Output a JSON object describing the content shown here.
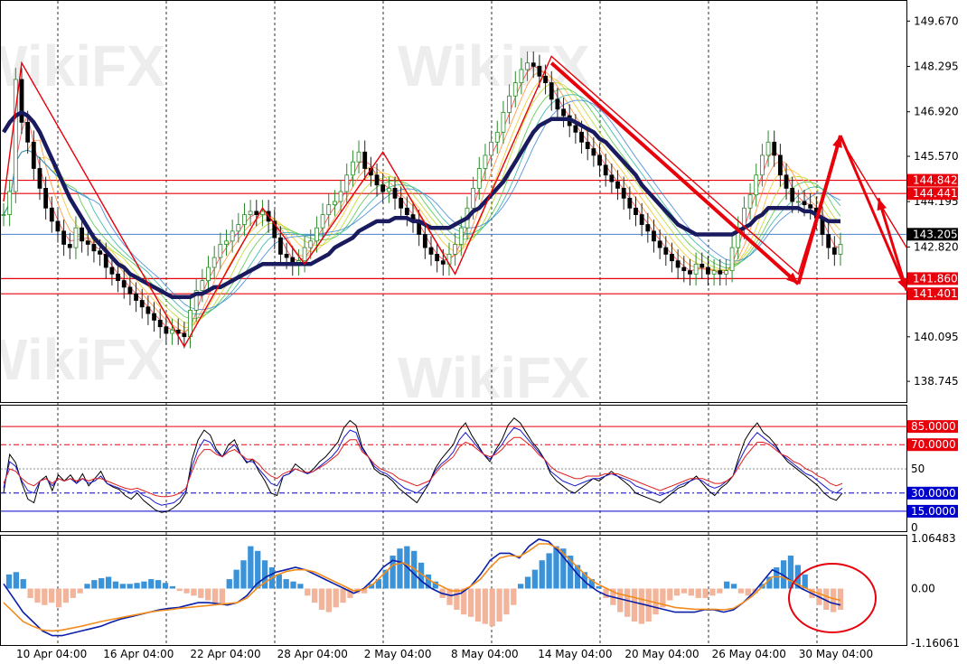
{
  "watermark": "WikiFX",
  "colors": {
    "frame": "#000000",
    "ma_thick": "#1a1a5e",
    "level_red": "#e8000b",
    "current_price_line": "#4a7fc4",
    "current_price_badge": "#000000",
    "level_blue": "#0000cc",
    "hist_positive": "#3a92d8",
    "hist_negative": "#f2b49a",
    "macd_line": "#0a1fa8",
    "signal_line": "#f28c1c",
    "stoch_fast": "#000000",
    "stoch_mid": "#1a1acc",
    "stoch_slow": "#e02020",
    "arrow": "#e8000b"
  },
  "chart_data": [
    {
      "type": "line",
      "panel": "price",
      "y_ticks": [
        "149.670",
        "148.295",
        "146.920",
        "145.570",
        "144.195",
        "142.820",
        "140.095",
        "138.745"
      ],
      "horizontal_levels": [
        {
          "label": "144.842",
          "value": 144.842,
          "style": "red"
        },
        {
          "label": "144.441",
          "value": 144.441,
          "style": "red"
        },
        {
          "label": "143.205",
          "value": 143.205,
          "style": "current"
        },
        {
          "label": "141.860",
          "value": 141.86,
          "style": "red"
        },
        {
          "label": "141.401",
          "value": 141.401,
          "style": "red"
        }
      ],
      "x_ticks": [
        "10 Apr 04:00",
        "16 Apr 04:00",
        "22 Apr 04:00",
        "28 Apr 04:00",
        "2 May 04:00",
        "8 May 04:00",
        "14 May 04:00",
        "20 May 04:00",
        "26 May 04:00",
        "30 May 04:00"
      ],
      "zigzag": [
        {
          "x": 0,
          "y": 144.2
        },
        {
          "x": 3,
          "y": 148.4
        },
        {
          "x": 30,
          "y": 139.8
        },
        {
          "x": 43,
          "y": 144.0
        },
        {
          "x": 50,
          "y": 142.3
        },
        {
          "x": 63,
          "y": 145.7
        },
        {
          "x": 75,
          "y": 142.0
        },
        {
          "x": 91,
          "y": 148.6
        },
        {
          "x": 132,
          "y": 142.0
        },
        {
          "x": 139,
          "y": 146.1
        },
        {
          "x": 150,
          "y": 142.8
        }
      ],
      "closes": [
        143.8,
        144.5,
        147.9,
        146.6,
        146.0,
        145.2,
        144.6,
        144.0,
        143.6,
        143.3,
        142.9,
        142.8,
        143.4,
        143.0,
        142.9,
        142.7,
        142.6,
        142.2,
        142.0,
        141.8,
        141.6,
        141.4,
        141.2,
        141.0,
        140.8,
        140.6,
        140.4,
        140.2,
        140.3,
        140.2,
        140.1,
        140.9,
        141.5,
        141.8,
        142.2,
        142.5,
        142.9,
        143.0,
        143.3,
        143.5,
        143.8,
        143.9,
        143.8,
        143.9,
        143.6,
        143.1,
        142.6,
        142.5,
        142.3,
        142.4,
        142.8,
        143.0,
        143.4,
        143.8,
        144.1,
        144.2,
        144.5,
        145.0,
        145.4,
        145.7,
        145.2,
        145.0,
        144.7,
        144.5,
        144.6,
        144.3,
        144.0,
        143.8,
        143.6,
        143.2,
        142.8,
        142.6,
        142.4,
        142.3,
        142.6,
        142.9,
        143.4,
        144.0,
        144.6,
        145.2,
        145.6,
        146.0,
        146.3,
        146.9,
        147.4,
        147.8,
        148.2,
        148.4,
        148.3,
        148.0,
        147.8,
        147.3,
        147.0,
        146.8,
        146.5,
        146.3,
        146.0,
        145.8,
        145.6,
        145.3,
        145.0,
        144.8,
        144.6,
        144.3,
        144.0,
        143.8,
        143.5,
        143.3,
        143.0,
        142.8,
        142.6,
        142.4,
        142.2,
        142.1,
        142.0,
        142.3,
        142.2,
        142.0,
        142.1,
        142.0,
        142.1,
        142.8,
        143.4,
        144.0,
        144.4,
        145.0,
        145.6,
        146.0,
        145.6,
        145.0,
        144.6,
        144.2,
        144.2,
        144.1,
        144.0,
        143.7,
        143.2,
        142.8,
        142.6,
        142.9
      ],
      "ma_values": [
        146.3,
        146.6,
        146.8,
        146.9,
        146.8,
        146.6,
        146.3,
        145.9,
        145.5,
        145.1,
        144.7,
        144.3,
        144.0,
        143.7,
        143.4,
        143.1,
        142.9,
        142.7,
        142.5,
        142.3,
        142.2,
        142.0,
        141.9,
        141.8,
        141.7,
        141.6,
        141.5,
        141.4,
        141.3,
        141.3,
        141.3,
        141.3,
        141.4,
        141.4,
        141.5,
        141.6,
        141.6,
        141.7,
        141.8,
        141.9,
        142.0,
        142.1,
        142.2,
        142.3,
        142.3,
        142.3,
        142.3,
        142.3,
        142.3,
        142.3,
        142.3,
        142.3,
        142.4,
        142.5,
        142.6,
        142.8,
        142.9,
        143.0,
        143.1,
        143.3,
        143.4,
        143.5,
        143.6,
        143.6,
        143.6,
        143.7,
        143.7,
        143.7,
        143.6,
        143.6,
        143.5,
        143.4,
        143.4,
        143.4,
        143.4,
        143.5,
        143.6,
        143.7,
        143.9,
        144.0,
        144.2,
        144.4,
        144.6,
        144.8,
        145.1,
        145.4,
        145.7,
        146.0,
        146.3,
        146.5,
        146.6,
        146.7,
        146.7,
        146.7,
        146.7,
        146.6,
        146.5,
        146.4,
        146.3,
        146.1,
        146.0,
        145.8,
        145.6,
        145.4,
        145.2,
        145.0,
        144.7,
        144.5,
        144.3,
        144.1,
        143.9,
        143.7,
        143.5,
        143.4,
        143.3,
        143.2,
        143.2,
        143.2,
        143.2,
        143.2,
        143.2,
        143.2,
        143.3,
        143.4,
        143.5,
        143.7,
        143.8,
        144.0,
        144.0,
        144.0,
        144.0,
        144.0,
        144.0,
        143.9,
        143.9,
        143.8,
        143.7,
        143.6,
        143.6,
        143.6
      ],
      "price_min": 138.2,
      "price_max": 150.2
    },
    {
      "type": "line",
      "panel": "oscillator",
      "y_ticks": [
        "85.0000",
        "70.0000",
        "50",
        "30.0000",
        "15.0000",
        "0"
      ],
      "levels": [
        {
          "label": "85.0000",
          "value": 85,
          "style": "red-solid"
        },
        {
          "label": "70.0000",
          "value": 70,
          "style": "red-dashdot"
        },
        {
          "label": "50",
          "value": 50,
          "style": "gray-dotted"
        },
        {
          "label": "30.0000",
          "value": 30,
          "style": "blue-dashdot"
        },
        {
          "label": "15.0000",
          "value": 15,
          "style": "blue-solid"
        }
      ],
      "series": [
        {
          "values": [
            30,
            62,
            55,
            38,
            25,
            22,
            40,
            44,
            32,
            45,
            40,
            45,
            38,
            46,
            36,
            42,
            48,
            38,
            35,
            33,
            28,
            25,
            30,
            24,
            20,
            16,
            14,
            15,
            18,
            22,
            30,
            58,
            74,
            82,
            78,
            66,
            60,
            70,
            74,
            62,
            55,
            58,
            48,
            40,
            30,
            28,
            44,
            46,
            54,
            50,
            46,
            50,
            56,
            60,
            66,
            72,
            84,
            90,
            86,
            68,
            60,
            50,
            46,
            44,
            40,
            34,
            30,
            26,
            22,
            30,
            38,
            50,
            58,
            64,
            70,
            82,
            88,
            78,
            70,
            62,
            56,
            66,
            74,
            86,
            92,
            88,
            80,
            72,
            66,
            58,
            46,
            40,
            36,
            32,
            30,
            34,
            38,
            42,
            40,
            44,
            48,
            44,
            40,
            36,
            30,
            28,
            26,
            24,
            22,
            26,
            30,
            34,
            36,
            40,
            44,
            38,
            32,
            28,
            34,
            38,
            44,
            60,
            74,
            82,
            88,
            80,
            76,
            70,
            62,
            56,
            52,
            48,
            44,
            40,
            36,
            30,
            26,
            24,
            30
          ]
        },
        {
          "values": [
            34,
            56,
            52,
            40,
            32,
            30,
            40,
            42,
            36,
            42,
            40,
            42,
            38,
            42,
            38,
            40,
            44,
            38,
            36,
            34,
            32,
            30,
            32,
            28,
            26,
            22,
            20,
            21,
            22,
            26,
            32,
            52,
            66,
            74,
            72,
            64,
            60,
            66,
            70,
            62,
            56,
            56,
            50,
            44,
            38,
            36,
            44,
            46,
            50,
            48,
            46,
            48,
            52,
            56,
            60,
            66,
            76,
            82,
            80,
            66,
            60,
            52,
            48,
            46,
            42,
            38,
            34,
            32,
            30,
            34,
            38,
            48,
            54,
            58,
            64,
            74,
            80,
            74,
            68,
            62,
            58,
            64,
            70,
            78,
            84,
            82,
            76,
            70,
            64,
            58,
            48,
            44,
            40,
            38,
            36,
            38,
            40,
            42,
            42,
            44,
            46,
            44,
            42,
            40,
            36,
            34,
            32,
            30,
            28,
            30,
            32,
            36,
            38,
            40,
            42,
            40,
            36,
            34,
            36,
            40,
            44,
            56,
            66,
            74,
            80,
            76,
            72,
            68,
            62,
            58,
            54,
            50,
            46,
            44,
            40,
            36,
            32,
            30,
            34
          ]
        },
        {
          "values": [
            38,
            50,
            48,
            42,
            38,
            36,
            40,
            42,
            38,
            42,
            40,
            42,
            40,
            42,
            40,
            42,
            42,
            40,
            38,
            36,
            34,
            33,
            34,
            32,
            30,
            28,
            27,
            27,
            28,
            30,
            34,
            48,
            60,
            66,
            66,
            62,
            60,
            64,
            66,
            62,
            58,
            58,
            54,
            48,
            44,
            42,
            46,
            48,
            50,
            48,
            47,
            48,
            51,
            54,
            58,
            62,
            70,
            74,
            74,
            64,
            60,
            54,
            50,
            48,
            46,
            42,
            40,
            38,
            36,
            38,
            40,
            46,
            52,
            56,
            60,
            68,
            72,
            70,
            66,
            62,
            60,
            62,
            66,
            72,
            76,
            76,
            72,
            68,
            62,
            58,
            52,
            48,
            46,
            44,
            42,
            42,
            44,
            44,
            44,
            46,
            46,
            46,
            44,
            42,
            40,
            38,
            36,
            34,
            32,
            34,
            36,
            38,
            40,
            42,
            42,
            42,
            40,
            38,
            38,
            40,
            44,
            52,
            60,
            66,
            72,
            72,
            70,
            66,
            62,
            60,
            56,
            54,
            50,
            48,
            44,
            42,
            38,
            36,
            38
          ]
        }
      ]
    },
    {
      "type": "bar",
      "panel": "macd",
      "y_ticks": [
        "1.06483",
        "0.00",
        "-1.16061"
      ],
      "y_min": -1.16061,
      "y_max": 1.06483,
      "histogram": [
        0.3,
        0.35,
        0.2,
        -0.2,
        -0.3,
        -0.35,
        -0.3,
        -0.4,
        -0.3,
        -0.2,
        -0.1,
        0.1,
        0.18,
        0.22,
        0.25,
        0.15,
        0.1,
        0.1,
        0.12,
        0.15,
        0.2,
        0.18,
        0.12,
        0.05,
        -0.05,
        -0.1,
        -0.15,
        -0.2,
        -0.25,
        -0.3,
        -0.35,
        0.2,
        0.4,
        0.6,
        0.9,
        0.8,
        0.6,
        0.45,
        0.3,
        0.2,
        0.15,
        0.1,
        -0.15,
        -0.3,
        -0.45,
        -0.5,
        -0.4,
        -0.3,
        -0.2,
        -0.1,
        -0.1,
        0.1,
        0.2,
        0.4,
        0.7,
        0.85,
        0.9,
        0.8,
        0.55,
        0.3,
        0.15,
        -0.2,
        -0.35,
        -0.45,
        -0.55,
        -0.6,
        -0.7,
        -0.75,
        -0.8,
        -0.7,
        -0.55,
        -0.35,
        0.1,
        0.25,
        0.4,
        0.6,
        0.75,
        0.9,
        0.85,
        0.7,
        0.5,
        0.35,
        0.2,
        0.05,
        -0.2,
        -0.35,
        -0.5,
        -0.6,
        -0.7,
        -0.75,
        -0.7,
        -0.55,
        -0.4,
        -0.25,
        -0.15,
        -0.1,
        -0.15,
        -0.2,
        -0.2,
        -0.15,
        -0.1,
        0.15,
        0.1,
        -0.1,
        -0.15,
        -0.1,
        0.1,
        0.25,
        0.45,
        0.6,
        0.7,
        0.5,
        0.3,
        -0.2,
        -0.35,
        -0.45,
        -0.5,
        -0.45
      ],
      "series": [
        {
          "values": [
            0.1,
            -0.2,
            -0.5,
            -0.7,
            -0.9,
            -1.0,
            -1.0,
            -0.95,
            -0.9,
            -0.85,
            -0.8,
            -0.72,
            -0.65,
            -0.6,
            -0.55,
            -0.5,
            -0.45,
            -0.42,
            -0.4,
            -0.35,
            -0.3,
            -0.3,
            -0.32,
            -0.35,
            -0.3,
            -0.15,
            0.1,
            0.25,
            0.35,
            0.4,
            0.45,
            0.4,
            0.3,
            0.2,
            0.1,
            0.0,
            -0.1,
            0.0,
            0.2,
            0.45,
            0.6,
            0.55,
            0.35,
            0.15,
            0.0,
            -0.1,
            -0.15,
            -0.1,
            0.05,
            0.3,
            0.6,
            0.75,
            0.75,
            0.65,
            0.9,
            1.05,
            1.0,
            0.8,
            0.55,
            0.3,
            0.1,
            -0.05,
            -0.15,
            -0.2,
            -0.25,
            -0.3,
            -0.35,
            -0.4,
            -0.45,
            -0.5,
            -0.5,
            -0.5,
            -0.45,
            -0.45,
            -0.5,
            -0.45,
            -0.3,
            -0.1,
            0.15,
            0.4,
            0.3,
            0.15,
            0.0,
            -0.1,
            -0.2,
            -0.3,
            -0.35
          ]
        },
        {
          "values": [
            -0.3,
            -0.5,
            -0.7,
            -0.8,
            -0.88,
            -0.9,
            -0.88,
            -0.84,
            -0.8,
            -0.75,
            -0.7,
            -0.66,
            -0.62,
            -0.58,
            -0.54,
            -0.5,
            -0.47,
            -0.45,
            -0.42,
            -0.4,
            -0.38,
            -0.36,
            -0.34,
            -0.32,
            -0.3,
            -0.2,
            0.0,
            0.15,
            0.28,
            0.36,
            0.4,
            0.4,
            0.35,
            0.25,
            0.15,
            0.05,
            -0.05,
            -0.02,
            0.1,
            0.3,
            0.5,
            0.55,
            0.45,
            0.3,
            0.15,
            0.05,
            -0.05,
            -0.05,
            0.05,
            0.2,
            0.45,
            0.65,
            0.7,
            0.68,
            0.8,
            0.95,
            0.95,
            0.85,
            0.65,
            0.45,
            0.25,
            0.1,
            0.0,
            -0.1,
            -0.15,
            -0.2,
            -0.25,
            -0.3,
            -0.35,
            -0.4,
            -0.42,
            -0.44,
            -0.44,
            -0.44,
            -0.45,
            -0.42,
            -0.3,
            -0.15,
            0.05,
            0.25,
            0.25,
            0.15,
            0.05,
            -0.05,
            -0.12,
            -0.2,
            -0.25
          ]
        }
      ]
    }
  ]
}
